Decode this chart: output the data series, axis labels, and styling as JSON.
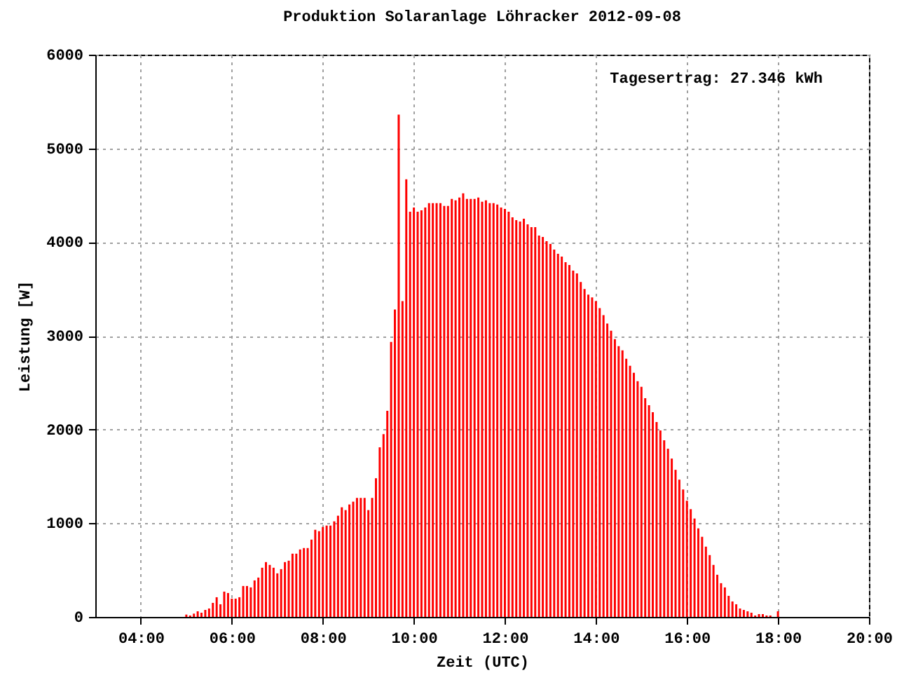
{
  "chart_data": {
    "type": "bar",
    "title": "Produktion Solaranlage Löhracker 2012-09-08",
    "xlabel": "Zeit (UTC)",
    "ylabel": "Leistung [W]",
    "annotations": [
      "Tagesertrag: 27.346 kWh"
    ],
    "x": [
      5,
      5.0833,
      5.1667,
      5.25,
      5.3333,
      5.4167,
      5.5,
      5.5833,
      5.6667,
      5.75,
      5.8333,
      5.9167,
      6,
      6.0833,
      6.1667,
      6.25,
      6.3333,
      6.4167,
      6.5,
      6.5833,
      6.6667,
      6.75,
      6.8333,
      6.9167,
      7,
      7.0833,
      7.1667,
      7.25,
      7.3333,
      7.4167,
      7.5,
      7.5833,
      7.6667,
      7.75,
      7.8333,
      7.9167,
      8,
      8.0833,
      8.1667,
      8.25,
      8.3333,
      8.4167,
      8.5,
      8.5833,
      8.6667,
      8.75,
      8.8333,
      8.9167,
      9,
      9.0833,
      9.1667,
      9.25,
      9.3333,
      9.4167,
      9.5,
      9.5833,
      9.6667,
      9.75,
      9.8333,
      9.9167,
      10,
      10.0833,
      10.1667,
      10.25,
      10.3333,
      10.4167,
      10.5,
      10.5833,
      10.6667,
      10.75,
      10.8333,
      10.9167,
      11,
      11.0833,
      11.1667,
      11.25,
      11.3333,
      11.4167,
      11.5,
      11.5833,
      11.6667,
      11.75,
      11.8333,
      11.9167,
      12,
      12.0833,
      12.1667,
      12.25,
      12.3333,
      12.4167,
      12.5,
      12.5833,
      12.6667,
      12.75,
      12.8333,
      12.9167,
      13,
      13.0833,
      13.1667,
      13.25,
      13.3333,
      13.4167,
      13.5,
      13.5833,
      13.6667,
      13.75,
      13.8333,
      13.9167,
      14,
      14.0833,
      14.1667,
      14.25,
      14.3333,
      14.4167,
      14.5,
      14.5833,
      14.6667,
      14.75,
      14.8333,
      14.9167,
      15,
      15.0833,
      15.1667,
      15.25,
      15.3333,
      15.4167,
      15.5,
      15.5833,
      15.6667,
      15.75,
      15.8333,
      15.9167,
      16,
      16.0833,
      16.1667,
      16.25,
      16.3333,
      16.4167,
      16.5,
      16.5833,
      16.6667,
      16.75,
      16.8333,
      16.9167,
      17,
      17.0833,
      17.1667,
      17.25,
      17.3333,
      17.4167,
      17.5,
      17.5833,
      17.6667,
      17.75,
      17.8333,
      17.9167,
      18
    ],
    "series": [
      {
        "color": "#ff0000",
        "values": [
          25,
          15,
          35,
          60,
          45,
          75,
          90,
          150,
          210,
          135,
          270,
          255,
          195,
          195,
          210,
          330,
          330,
          315,
          390,
          420,
          525,
          585,
          555,
          525,
          465,
          510,
          585,
          600,
          675,
          675,
          720,
          735,
          735,
          825,
          930,
          915,
          960,
          975,
          975,
          1020,
          1080,
          1170,
          1140,
          1200,
          1230,
          1270,
          1270,
          1270,
          1140,
          1270,
          1480,
          1810,
          1950,
          2200,
          2935,
          3280,
          5360,
          3370,
          4670,
          4325,
          4370,
          4325,
          4340,
          4370,
          4415,
          4415,
          4415,
          4415,
          4385,
          4385,
          4460,
          4445,
          4475,
          4520,
          4460,
          4460,
          4460,
          4475,
          4430,
          4445,
          4415,
          4415,
          4400,
          4370,
          4355,
          4325,
          4265,
          4235,
          4220,
          4250,
          4190,
          4160,
          4160,
          4070,
          4055,
          4010,
          3980,
          3920,
          3875,
          3845,
          3785,
          3755,
          3695,
          3665,
          3575,
          3500,
          3440,
          3410,
          3370,
          3295,
          3220,
          3130,
          3055,
          2965,
          2890,
          2845,
          2755,
          2680,
          2605,
          2515,
          2455,
          2335,
          2260,
          2185,
          2080,
          1990,
          1885,
          1795,
          1690,
          1570,
          1465,
          1360,
          1240,
          1150,
          1050,
          945,
          855,
          750,
          660,
          555,
          450,
          360,
          315,
          225,
          165,
          135,
          90,
          75,
          60,
          45,
          15,
          30,
          30,
          15,
          15,
          null,
          60
        ]
      }
    ],
    "xlim": [
      3,
      20
    ],
    "xticks": [
      {
        "value": 4,
        "label": "04:00"
      },
      {
        "value": 6,
        "label": "06:00"
      },
      {
        "value": 8,
        "label": "08:00"
      },
      {
        "value": 10,
        "label": "10:00"
      },
      {
        "value": 12,
        "label": "12:00"
      },
      {
        "value": 14,
        "label": "14:00"
      },
      {
        "value": 16,
        "label": "16:00"
      },
      {
        "value": 18,
        "label": "18:00"
      },
      {
        "value": 20,
        "label": "20:00"
      }
    ],
    "ylim": [
      0,
      6000
    ],
    "yticks": [
      0,
      1000,
      2000,
      3000,
      4000,
      5000,
      6000
    ],
    "grid": true
  }
}
